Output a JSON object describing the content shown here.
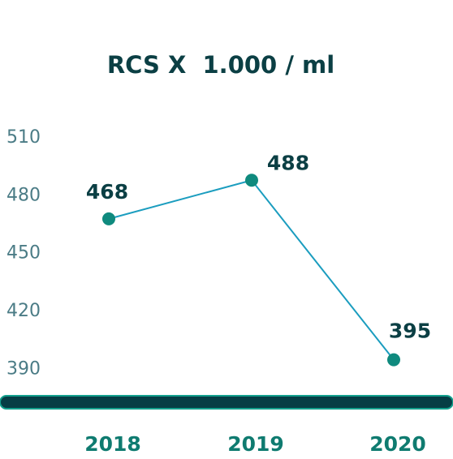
{
  "chart_data": {
    "type": "line",
    "title": "RCS X  1.000 / ml",
    "categories": [
      "2018",
      "2019",
      "2020"
    ],
    "series": [
      {
        "name": null,
        "color": "#1b9dbf",
        "marker_color": "#0f8a7e",
        "values": [
          468,
          488,
          395
        ]
      }
    ],
    "ylim": [
      373,
      515
    ],
    "yticks": [
      390,
      420,
      450,
      480,
      510
    ],
    "grid": false
  }
}
